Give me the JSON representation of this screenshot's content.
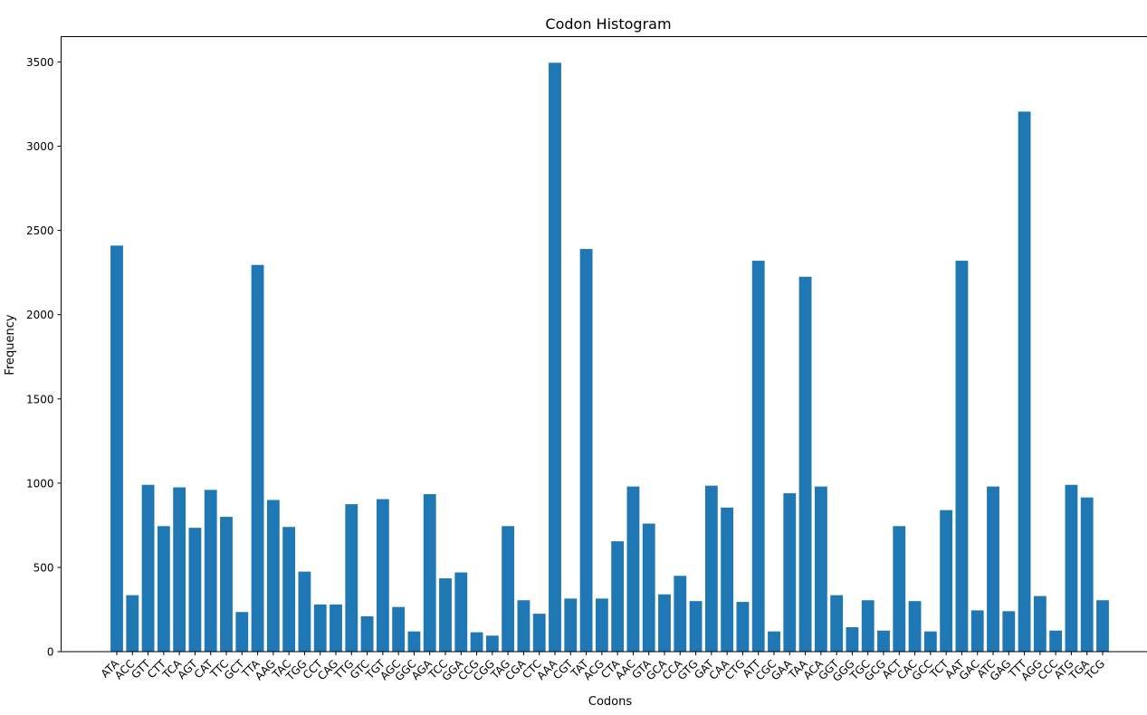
{
  "chart_data": {
    "type": "bar",
    "title": "Codon Histogram",
    "xlabel": "Codons",
    "ylabel": "Frequency",
    "ylim": [
      0,
      3650
    ],
    "yticks": [
      0,
      500,
      1000,
      1500,
      2000,
      2500,
      3000,
      3500
    ],
    "bar_color": "#1f77b4",
    "grid": false,
    "categories": [
      "ATA",
      "ACC",
      "GTT",
      "CTT",
      "TCA",
      "AGT",
      "CAT",
      "TTC",
      "GCT",
      "TTA",
      "AAG",
      "TAC",
      "TGG",
      "CCT",
      "CAG",
      "TTG",
      "GTC",
      "TGT",
      "AGC",
      "GGC",
      "AGA",
      "TCC",
      "GGA",
      "CCG",
      "CGG",
      "TAG",
      "CGA",
      "CTC",
      "AAA",
      "CGT",
      "TAT",
      "ACG",
      "CTA",
      "AAC",
      "GTA",
      "GCA",
      "CCA",
      "GTG",
      "GAT",
      "CAA",
      "CTG",
      "ATT",
      "CGC",
      "GAA",
      "TAA",
      "ACA",
      "GGT",
      "GGG",
      "TGC",
      "GCG",
      "ACT",
      "CAC",
      "GCC",
      "TCT",
      "AAT",
      "GAC",
      "ATC",
      "GAG",
      "TTT",
      "AGG",
      "CCC",
      "ATG",
      "TGA",
      "TCG"
    ],
    "values": [
      2410,
      335,
      990,
      745,
      975,
      735,
      960,
      800,
      235,
      2295,
      900,
      740,
      475,
      280,
      280,
      875,
      210,
      905,
      265,
      120,
      935,
      435,
      470,
      115,
      95,
      745,
      305,
      225,
      3495,
      315,
      2390,
      315,
      655,
      980,
      760,
      340,
      450,
      300,
      985,
      855,
      295,
      2320,
      120,
      940,
      2225,
      980,
      335,
      145,
      305,
      125,
      745,
      300,
      120,
      840,
      2320,
      245,
      980,
      240,
      3205,
      330,
      125,
      990,
      915,
      305
    ]
  }
}
